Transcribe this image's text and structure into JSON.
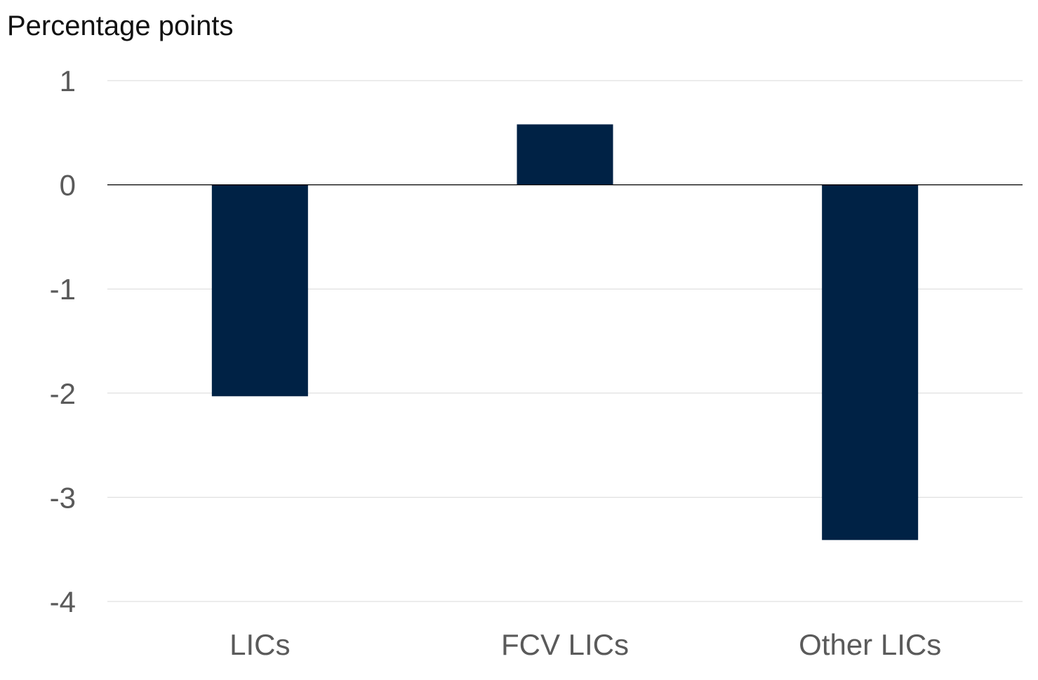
{
  "chart_data": {
    "type": "bar",
    "ylabel": "Percentage points",
    "categories": [
      "LICs",
      "FCV LICs",
      "Other LICs"
    ],
    "series": [
      {
        "values": [
          -2.03,
          0.58,
          -3.41
        ]
      }
    ],
    "ylim": [
      -4,
      1
    ],
    "yticks": [
      "1",
      "0",
      "-1",
      "-2",
      "-3",
      "-4"
    ],
    "ytick_values": [
      1,
      0,
      -1,
      -2,
      -3,
      -4
    ],
    "grid": true,
    "colors": {
      "bar": "#002245",
      "grid": "#d9d9d9",
      "zero_line": "#000000",
      "tick_text": "#5a5a5a",
      "label_text": "#111111"
    }
  }
}
